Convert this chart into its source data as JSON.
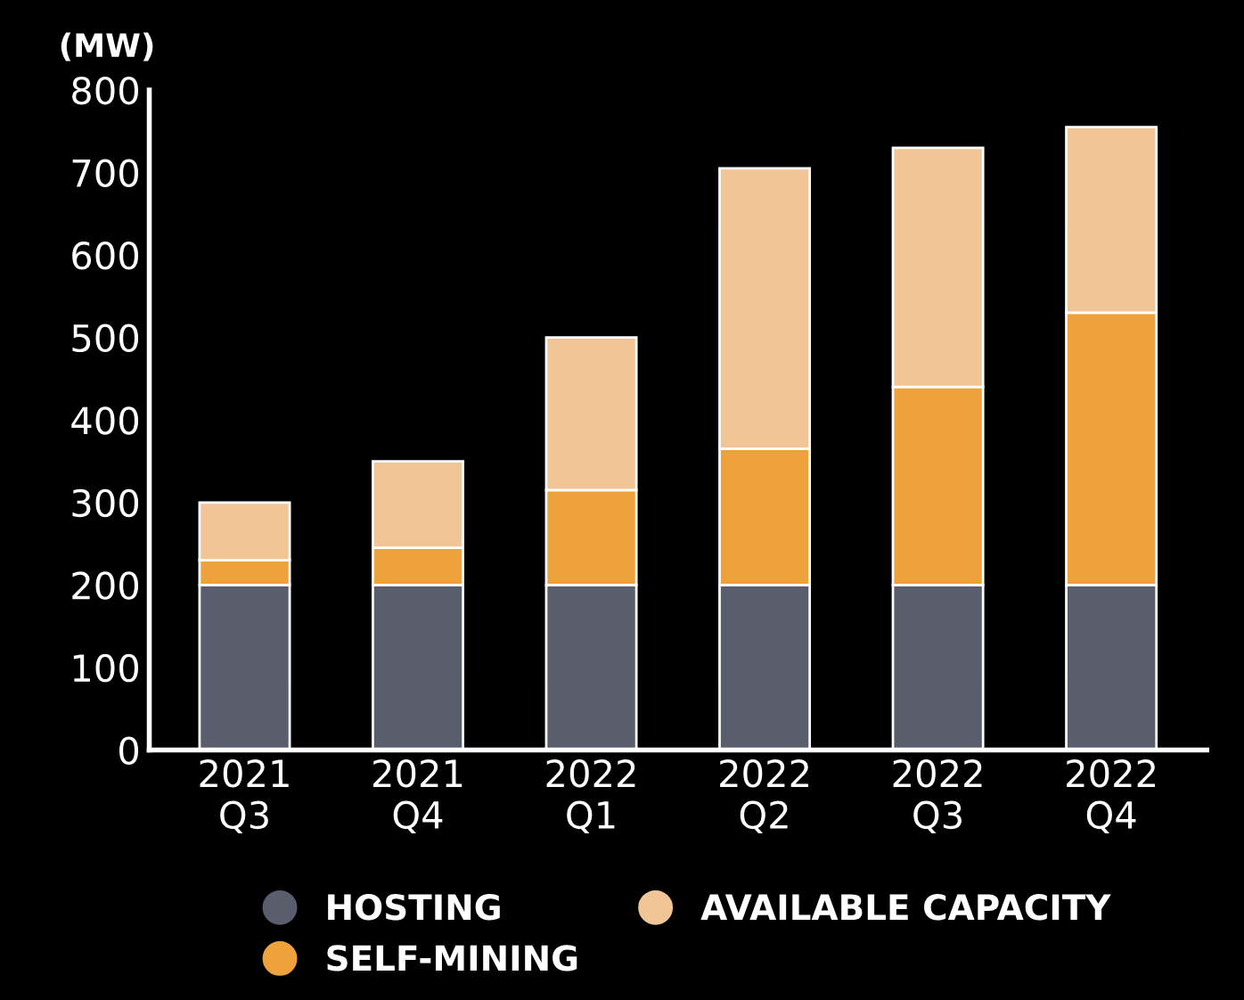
{
  "chart_data": {
    "type": "bar",
    "stacked": true,
    "ylabel": "(MW)",
    "categories": [
      "2021\nQ3",
      "2021\nQ4",
      "2022\nQ1",
      "2022\nQ2",
      "2022\nQ3",
      "2022\nQ4"
    ],
    "series": [
      {
        "name": "HOSTING",
        "color": "#5a5d6b",
        "values": [
          200,
          200,
          200,
          200,
          200,
          200
        ]
      },
      {
        "name": "SELF-MINING",
        "color": "#eda23c",
        "values": [
          30,
          45,
          115,
          165,
          240,
          330
        ]
      },
      {
        "name": "AVAILABLE CAPACITY",
        "color": "#f2c597",
        "values": [
          70,
          105,
          185,
          340,
          290,
          225
        ]
      }
    ],
    "ylim": [
      0,
      800
    ],
    "yticks": [
      0,
      100,
      200,
      300,
      400,
      500,
      600,
      700,
      800
    ],
    "grid": false,
    "legend": "bottom"
  }
}
